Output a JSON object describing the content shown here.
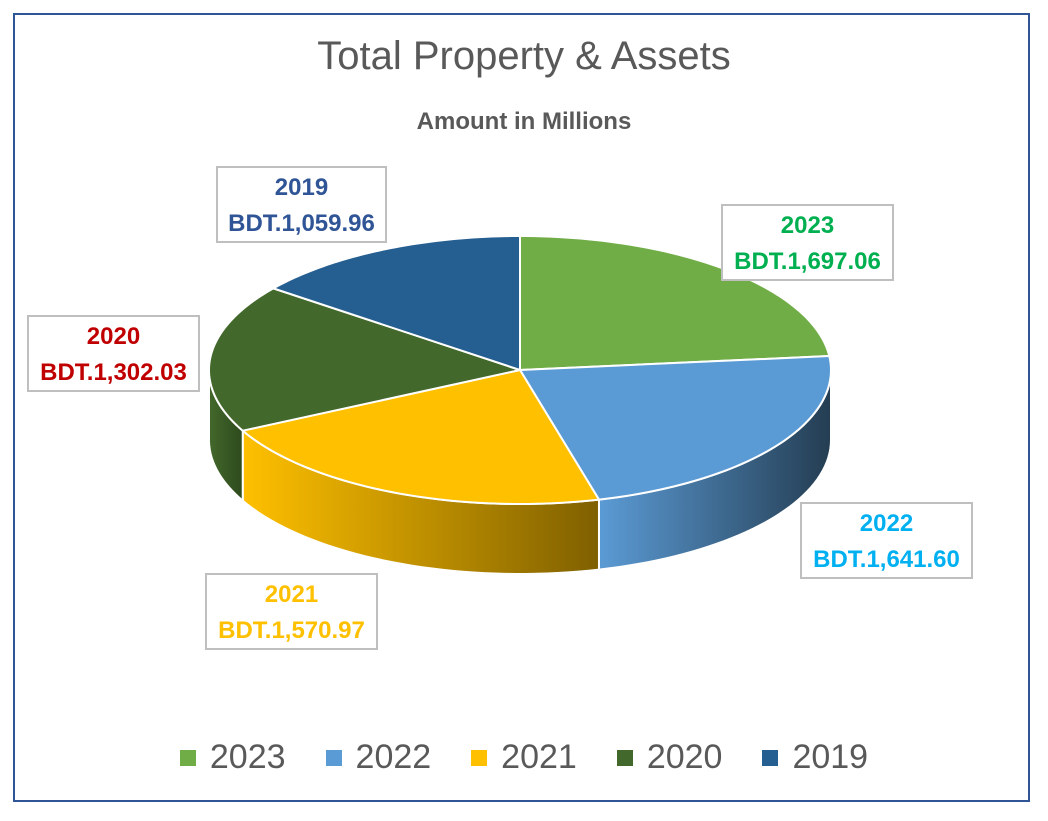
{
  "chart_data": {
    "type": "pie",
    "title": "Total Property & Assets",
    "subtitle": "Amount in Millions",
    "categories": [
      "2023",
      "2022",
      "2021",
      "2020",
      "2019"
    ],
    "values": [
      1697.06,
      1641.6,
      1570.97,
      1302.03,
      1059.96
    ],
    "value_labels": [
      "BDT.1,697.06",
      "BDT.1,641.60",
      "BDT.1,570.97",
      "BDT.1,302.03",
      "BDT.1,059.96"
    ],
    "colors": [
      "#70ad47",
      "#5b9bd5",
      "#ffc000",
      "#43682b",
      "#255e91"
    ],
    "side_colors": [
      "#4e7a32",
      "#243d52",
      "#7f6000",
      "#2d4a1d",
      "#1a4468"
    ],
    "label_colors": [
      "#00b050",
      "#00b0f0",
      "#ffc000",
      "#c00000",
      "#2f5597"
    ],
    "legend_position": "bottom",
    "style": "3d"
  }
}
